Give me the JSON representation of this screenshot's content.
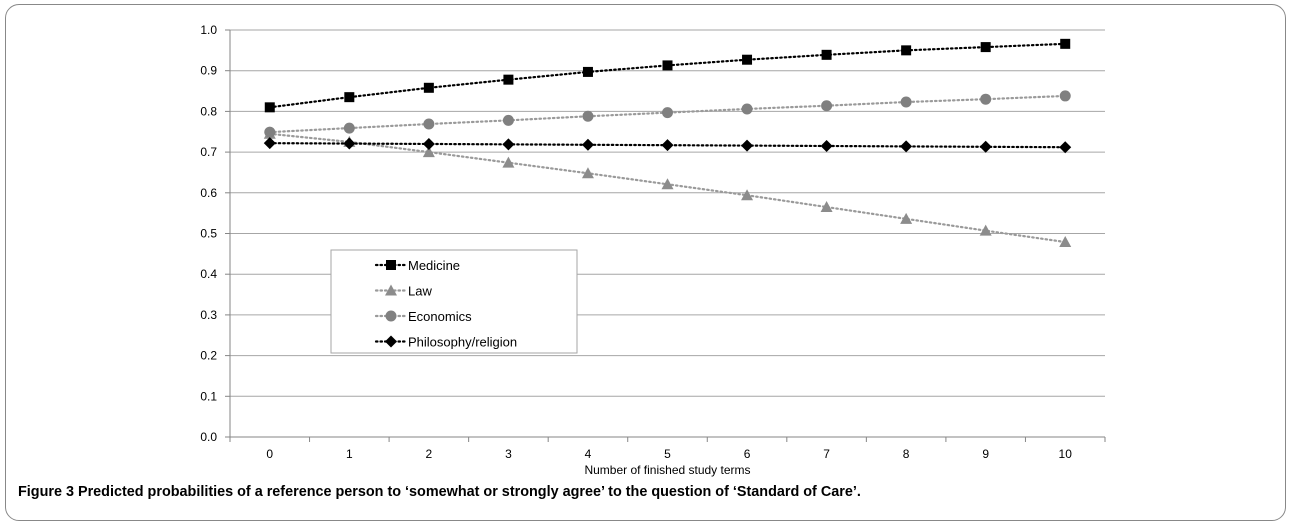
{
  "chart_data": {
    "type": "line",
    "x": [
      0,
      1,
      2,
      3,
      4,
      5,
      6,
      7,
      8,
      9,
      10
    ],
    "xlabel": "Number of finished study terms",
    "ylabel": "",
    "ylim": [
      0,
      1.0
    ],
    "yticks": [
      "0.0",
      "0.1",
      "0.2",
      "0.3",
      "0.4",
      "0.5",
      "0.6",
      "0.7",
      "0.8",
      "0.9",
      "1.0"
    ],
    "xticks": [
      "0",
      "1",
      "2",
      "3",
      "4",
      "5",
      "6",
      "7",
      "8",
      "9",
      "10"
    ],
    "grid": "horizontal",
    "legend_position": "lower-left",
    "series": [
      {
        "name": "Medicine",
        "marker": "square",
        "color": "#000000",
        "lineColor": "#000000",
        "values": [
          0.81,
          0.835,
          0.858,
          0.878,
          0.897,
          0.913,
          0.927,
          0.939,
          0.95,
          0.958,
          0.966
        ]
      },
      {
        "name": "Law",
        "marker": "triangle",
        "color": "#8c8c8c",
        "lineColor": "#9a9a9a",
        "values": [
          0.745,
          0.725,
          0.7,
          0.674,
          0.648,
          0.621,
          0.594,
          0.565,
          0.536,
          0.507,
          0.479
        ]
      },
      {
        "name": "Economics",
        "marker": "circle",
        "color": "#808080",
        "lineColor": "#9a9a9a",
        "values": [
          0.749,
          0.759,
          0.769,
          0.778,
          0.788,
          0.797,
          0.806,
          0.814,
          0.823,
          0.83,
          0.838
        ]
      },
      {
        "name": "Philosophy/religion",
        "marker": "diamond",
        "color": "#000000",
        "lineColor": "#000000",
        "values": [
          0.722,
          0.721,
          0.72,
          0.719,
          0.718,
          0.717,
          0.716,
          0.715,
          0.714,
          0.713,
          0.712
        ]
      }
    ]
  },
  "caption": {
    "label": "Figure 3",
    "text": " Predicted probabilities of a reference person to ‘somewhat or strongly agree’ to the question of ‘Standard of Care’."
  }
}
